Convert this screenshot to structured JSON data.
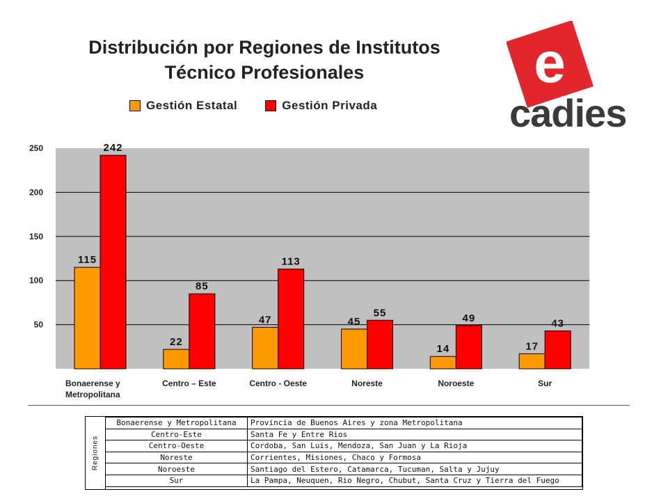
{
  "title_line1": "Distribución por Regiones de Institutos",
  "title_line2": "Técnico Profesionales",
  "logo": {
    "text": "cadies",
    "letter": "e",
    "color": "#e3262c",
    "text_color": "#3a3a3a"
  },
  "chart_data": {
    "type": "bar",
    "title": "Distribución por Regiones de Institutos Técnico Profesionales",
    "categories": [
      [
        "Bonaerense y",
        "Metropolitana"
      ],
      [
        "Centro – Este"
      ],
      [
        "Centro - Oeste"
      ],
      [
        "Noreste"
      ],
      [
        "Noroeste"
      ],
      [
        "Sur"
      ]
    ],
    "series": [
      {
        "name": "Gestión Estatal",
        "values": [
          115,
          22,
          47,
          45,
          14,
          17
        ],
        "color": "#ff9900"
      },
      {
        "name": "Gestión Privada",
        "values": [
          242,
          85,
          113,
          55,
          49,
          43
        ],
        "color": "#ff0000"
      }
    ],
    "ylim": [
      0,
      250
    ],
    "yticks": [
      50,
      100,
      150,
      200,
      250
    ],
    "grid": true,
    "legend": "top",
    "plot_bg": "#c0c0c0"
  },
  "regions_table": {
    "header": "Regiones",
    "rows": [
      {
        "region": "Bonaerense y Metropolitana",
        "provinces": "Provincia de Buenos Aires y zona Metropolitana"
      },
      {
        "region": "Centro-Este",
        "provinces": "Santa Fe y Entre Rios"
      },
      {
        "region": "Centro-Oeste",
        "provinces": "Cordoba, San Luis, Mendoza, San Juan y La Rioja"
      },
      {
        "region": "Noreste",
        "provinces": "Corrientes, Misiones, Chaco y Formosa"
      },
      {
        "region": "Noroeste",
        "provinces": "Santiago del Estero, Catamarca, Tucuman, Salta y Jujuy"
      },
      {
        "region": "Sur",
        "provinces": "La Pampa, Neuquen, Rio Negro, Chubut, Santa Cruz y Tierra del Fuego"
      }
    ]
  }
}
